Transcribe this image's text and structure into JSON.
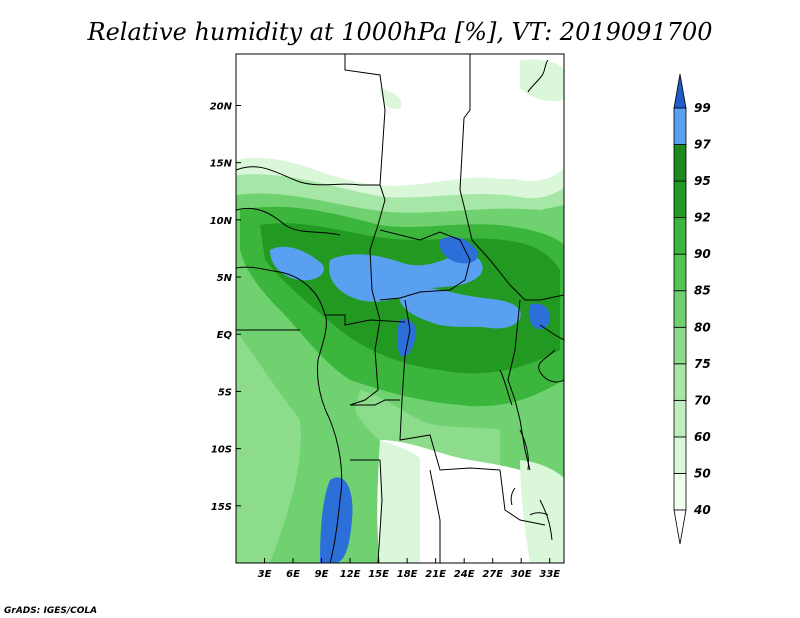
{
  "title": "Relative humidity at 1000hPa [%], VT: 2019091700",
  "credit": "GrADS: IGES/COLA",
  "map": {
    "lon_range": [
      0,
      34.5
    ],
    "lat_range": [
      -20,
      24.5
    ],
    "x_ticks": [
      {
        "lon": 3,
        "label": "3E"
      },
      {
        "lon": 6,
        "label": "6E"
      },
      {
        "lon": 9,
        "label": "9E"
      },
      {
        "lon": 12,
        "label": "12E"
      },
      {
        "lon": 15,
        "label": "15E"
      },
      {
        "lon": 18,
        "label": "18E"
      },
      {
        "lon": 21,
        "label": "21E"
      },
      {
        "lon": 24,
        "label": "24E"
      },
      {
        "lon": 27,
        "label": "27E"
      },
      {
        "lon": 30,
        "label": "30E"
      },
      {
        "lon": 33,
        "label": "33E"
      }
    ],
    "y_ticks": [
      {
        "lat": 20,
        "label": "20N"
      },
      {
        "lat": 15,
        "label": "15N"
      },
      {
        "lat": 10,
        "label": "10N"
      },
      {
        "lat": 5,
        "label": "5N"
      },
      {
        "lat": 0,
        "label": "EQ"
      },
      {
        "lat": -5,
        "label": "5S"
      },
      {
        "lat": -10,
        "label": "10S"
      },
      {
        "lat": -15,
        "label": "15S"
      }
    ]
  },
  "colorbar": {
    "levels": [
      {
        "label": "40",
        "color": "#f0fff0"
      },
      {
        "label": "50",
        "color": "#daf7da"
      },
      {
        "label": "60",
        "color": "#c0eec0"
      },
      {
        "label": "70",
        "color": "#a6e6a6"
      },
      {
        "label": "75",
        "color": "#8cdc8c"
      },
      {
        "label": "80",
        "color": "#6fd16f"
      },
      {
        "label": "85",
        "color": "#52c552"
      },
      {
        "label": "90",
        "color": "#3bb53b"
      },
      {
        "label": "92",
        "color": "#229a22"
      },
      {
        "label": "95",
        "color": "#1c8a1c"
      },
      {
        "label": "97",
        "color": "#5aa0f0"
      },
      {
        "label": "99",
        "color": "#2d6fd8"
      }
    ],
    "top_color": "#1e5cc8",
    "bottom_color": "#ffffff"
  }
}
